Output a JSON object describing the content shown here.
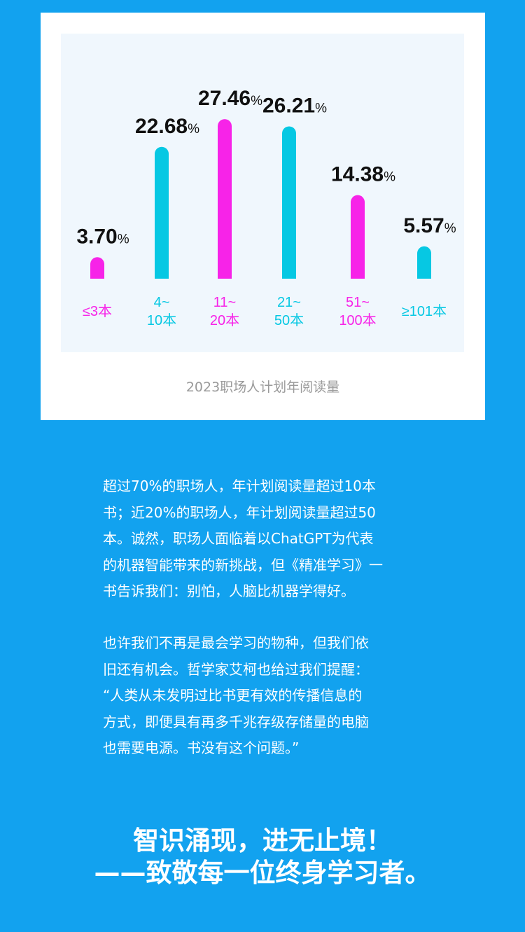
{
  "chart_data": {
    "type": "bar",
    "title": "2023职场人计划年阅读量",
    "categories": [
      [
        "≤3本"
      ],
      [
        "4~",
        "10本"
      ],
      [
        "11~",
        "20本"
      ],
      [
        "21~",
        "50本"
      ],
      [
        "51~",
        "100本"
      ],
      [
        "≥101本"
      ]
    ],
    "values": [
      3.7,
      22.68,
      27.46,
      26.21,
      14.38,
      5.57
    ],
    "value_labels": [
      "3.70",
      "22.68",
      "27.46",
      "26.21",
      "14.38",
      "5.57"
    ],
    "unit": "%",
    "colors": [
      "#f723e8",
      "#06c8e3",
      "#f723e8",
      "#06c8e3",
      "#f723e8",
      "#06c8e3"
    ],
    "ylim": [
      0,
      30
    ],
    "grid": false
  },
  "paragraphs": [
    [
      "超过70%的职场人，年计划阅读量超过10本",
      "书；近20%的职场人，年计划阅读量超过50",
      "本。诚然，职场人面临着以ChatGPT为代表",
      "的机器智能带来的新挑战，但《精准学习》一",
      "书告诉我们：别怕，人脑比机器学得好。"
    ],
    [
      "也许我们不再是最会学习的物种，但我们依",
      "旧还有机会。哲学家艾柯也给过我们提醒：",
      "“人类从未发明过比书更有效的传播信息的",
      "方式，即便具有再多千兆存级存储量的电脑",
      "也需要电源。书没有这个问题。”"
    ]
  ],
  "headline": [
    "智识涌现，进无止境！",
    "——致敬每一位终身学习者。"
  ]
}
